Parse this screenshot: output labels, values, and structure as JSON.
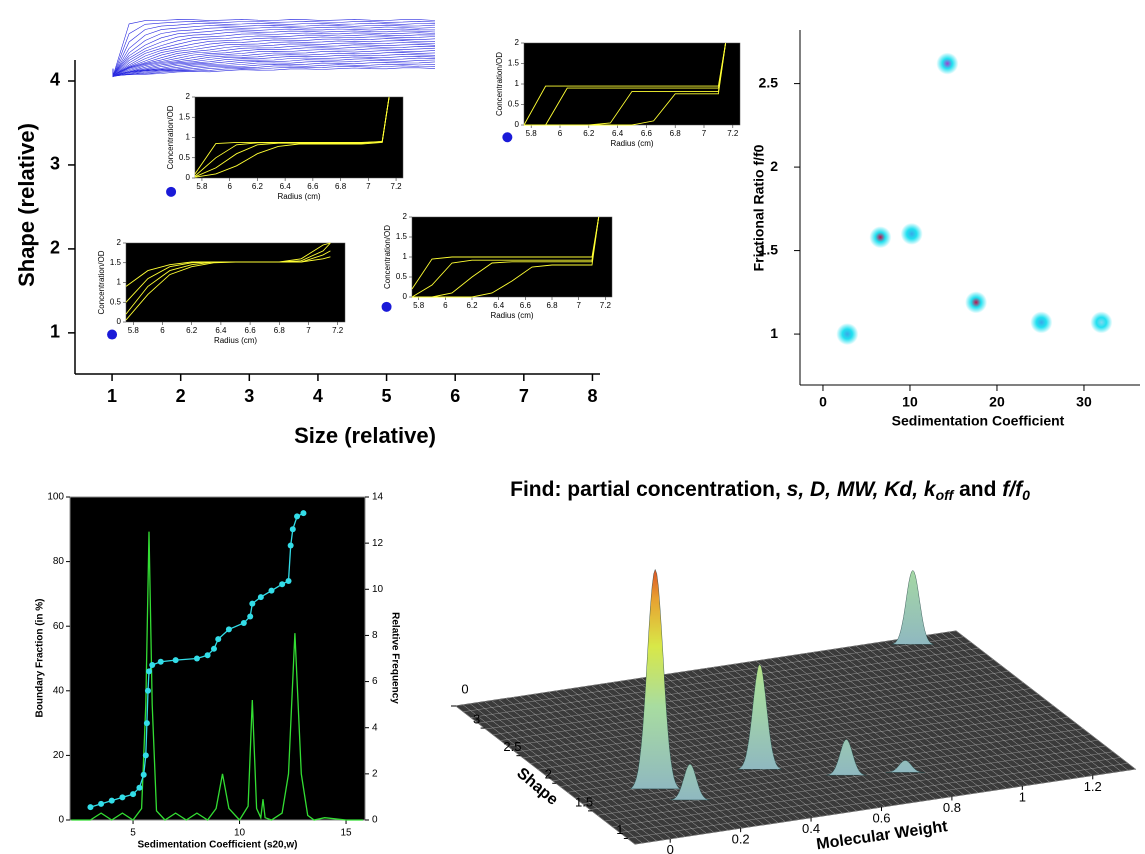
{
  "chart_data": [
    {
      "type": "scatter",
      "xlabel": "Size (relative)",
      "ylabel": "Shape (relative)",
      "xlim": [
        0.46,
        8.11
      ],
      "ylim": [
        0.51,
        4.25
      ],
      "xticks": [
        1,
        2,
        3,
        4,
        5,
        6,
        7,
        8
      ],
      "yticks": [
        1,
        2,
        3,
        4
      ],
      "x": [
        1,
        1.86,
        5,
        6.76
      ],
      "y": [
        0.98,
        2.68,
        1.31,
        3.33
      ],
      "color": "#1a1ad8",
      "insets": [
        {
          "type": "line",
          "xlabel": "Radius (cm)",
          "ylabel": "Concentration/OD",
          "xlim": [
            5.75,
            7.25
          ],
          "ylim": [
            0,
            2
          ],
          "xticks": [
            5.8,
            6,
            6.2,
            6.4,
            6.6,
            6.8,
            7,
            7.2
          ],
          "yticks": [
            0,
            0.5,
            1,
            1.5,
            2
          ],
          "color": "#ffff33",
          "x": [
            5.75,
            5.9,
            6.05,
            6.2,
            6.35,
            6.5,
            6.65,
            6.8,
            6.95,
            7.1,
            7.15
          ],
          "series": [
            {
              "values": [
                0.1,
                0.85,
                0.88,
                0.88,
                0.88,
                0.88,
                0.88,
                0.88,
                0.88,
                0.9,
                2
              ]
            },
            {
              "values": [
                0.05,
                0.5,
                0.82,
                0.87,
                0.87,
                0.87,
                0.87,
                0.87,
                0.87,
                0.9,
                2
              ]
            },
            {
              "values": [
                0.03,
                0.25,
                0.6,
                0.82,
                0.86,
                0.86,
                0.86,
                0.86,
                0.86,
                0.9,
                2
              ]
            },
            {
              "values": [
                0.02,
                0.1,
                0.3,
                0.6,
                0.78,
                0.84,
                0.84,
                0.84,
                0.84,
                0.88,
                2
              ]
            }
          ]
        },
        {
          "type": "line",
          "xlabel": "Radius (cm)",
          "ylabel": "Concentration/OD",
          "xlim": [
            5.75,
            7.25
          ],
          "ylim": [
            0,
            2
          ],
          "xticks": [
            5.8,
            6,
            6.2,
            6.4,
            6.6,
            6.8,
            7,
            7.2
          ],
          "yticks": [
            0,
            0.5,
            1,
            1.5,
            2
          ],
          "color": "#ffff33",
          "x": [
            5.75,
            5.9,
            6.05,
            6.2,
            6.35,
            6.5,
            6.65,
            6.8,
            6.95,
            7.1,
            7.15
          ],
          "series": [
            {
              "values": [
                0,
                0.95,
                0.95,
                0.95,
                0.95,
                0.95,
                0.95,
                0.95,
                0.95,
                0.95,
                2
              ]
            },
            {
              "values": [
                0,
                0,
                0.9,
                0.9,
                0.9,
                0.9,
                0.9,
                0.9,
                0.9,
                0.9,
                2
              ]
            },
            {
              "values": [
                0,
                0,
                0,
                0,
                0.05,
                0.82,
                0.82,
                0.82,
                0.82,
                0.82,
                2
              ]
            },
            {
              "values": [
                0,
                0,
                0,
                0,
                0,
                0,
                0.1,
                0.76,
                0.76,
                0.76,
                2
              ]
            }
          ]
        },
        {
          "type": "line",
          "xlabel": "Radius (cm)",
          "ylabel": "Concentration/OD",
          "xlim": [
            5.75,
            7.25
          ],
          "ylim": [
            0,
            2
          ],
          "xticks": [
            5.8,
            6,
            6.2,
            6.4,
            6.6,
            6.8,
            7,
            7.2
          ],
          "yticks": [
            0,
            0.5,
            1,
            1.5,
            2
          ],
          "color": "#ffff33",
          "x": [
            5.75,
            5.9,
            6.05,
            6.2,
            6.35,
            6.5,
            6.65,
            6.8,
            6.95,
            7.1,
            7.15
          ],
          "series": [
            {
              "values": [
                0.05,
                0.7,
                1.2,
                1.4,
                1.5,
                1.52,
                1.52,
                1.52,
                1.55,
                1.8,
                2
              ]
            },
            {
              "values": [
                0.2,
                0.9,
                1.3,
                1.45,
                1.52,
                1.52,
                1.52,
                1.52,
                1.6,
                1.95,
                2
              ]
            },
            {
              "values": [
                0.5,
                1.1,
                1.4,
                1.5,
                1.52,
                1.52,
                1.52,
                1.52,
                1.52,
                1.7,
                1.8
              ]
            },
            {
              "values": [
                0.9,
                1.3,
                1.45,
                1.52,
                1.52,
                1.52,
                1.52,
                1.52,
                1.52,
                1.6,
                1.65
              ]
            }
          ]
        },
        {
          "type": "line",
          "xlabel": "Radius (cm)",
          "ylabel": "Concentration/OD",
          "xlim": [
            5.75,
            7.25
          ],
          "ylim": [
            0,
            2
          ],
          "xticks": [
            5.8,
            6,
            6.2,
            6.4,
            6.6,
            6.8,
            7,
            7.2
          ],
          "yticks": [
            0,
            0.5,
            1,
            1.5,
            2
          ],
          "color": "#ffff33",
          "x": [
            5.75,
            5.9,
            6.05,
            6.2,
            6.35,
            6.5,
            6.65,
            6.8,
            6.95,
            7.1,
            7.15
          ],
          "series": [
            {
              "values": [
                0.2,
                0.95,
                1,
                1,
                1,
                1,
                1,
                1,
                1,
                1,
                2
              ]
            },
            {
              "values": [
                0,
                0.3,
                0.85,
                0.92,
                0.92,
                0.92,
                0.92,
                0.92,
                0.92,
                0.92,
                2
              ]
            },
            {
              "values": [
                0,
                0,
                0.1,
                0.5,
                0.85,
                0.88,
                0.88,
                0.88,
                0.88,
                0.88,
                2
              ]
            },
            {
              "values": [
                0,
                0,
                0,
                0,
                0.1,
                0.4,
                0.75,
                0.8,
                0.8,
                0.8,
                2
              ]
            }
          ]
        }
      ]
    },
    {
      "type": "scatter",
      "xlabel": "Sedimentation Coefficient",
      "ylabel": "Frictional Ratio f/f0",
      "xlim": [
        -2.64,
        36.44
      ],
      "ylim": [
        0.695,
        2.821
      ],
      "xticks": [
        0,
        10,
        20,
        30
      ],
      "yticks": [
        1,
        1.5,
        2,
        2.5
      ],
      "x": [
        2.8,
        6.6,
        10.2,
        14.3,
        17.6,
        25.1,
        32
      ],
      "y": [
        1.0,
        1.58,
        1.6,
        2.62,
        1.19,
        1.07,
        1.07
      ],
      "colors": [
        "#3aa8e8",
        "#c0104a",
        "#3aa8e8",
        "#a040d0",
        "#c0104a",
        "#3aa8e8",
        "#7fd8f0"
      ],
      "halo_color": "#20e0f0"
    },
    {
      "type": "line",
      "xlabel": "Sedimentation Coefficient (s20,w)",
      "ylabel": "Boundary Fraction (in %)",
      "y2label": "Relative Frequency",
      "xlim": [
        2.04,
        15.89
      ],
      "ylim": [
        0,
        100
      ],
      "y2lim": [
        0,
        14
      ],
      "xticks": [
        5,
        10,
        15
      ],
      "yticks": [
        0,
        20,
        40,
        60,
        80,
        100
      ],
      "y2ticks": [
        0,
        2,
        4,
        6,
        8,
        10,
        12,
        14
      ],
      "background": "#000000",
      "series": [
        {
          "color": "#33dde8",
          "marker": true,
          "x": [
            3.0,
            3.5,
            4.0,
            4.5,
            5.0,
            5.3,
            5.5,
            5.6,
            5.65,
            5.7,
            5.75,
            5.9,
            6.3,
            7.0,
            8.0,
            8.5,
            8.8,
            9.0,
            9.5,
            10.2,
            10.5,
            10.6,
            11.0,
            11.5,
            12.0,
            12.3,
            12.4,
            12.5,
            12.7,
            13.0
          ],
          "values": [
            4,
            5,
            6,
            7,
            8,
            10,
            14,
            20,
            30,
            40,
            46,
            48,
            49,
            49.5,
            50,
            51,
            53,
            56,
            59,
            61,
            63,
            67,
            69,
            71,
            73,
            74,
            85,
            90,
            94,
            95
          ]
        },
        {
          "color": "#33dd33",
          "axis": "y2",
          "x": [
            2.1,
            3,
            3.5,
            4,
            4.5,
            5,
            5.4,
            5.6,
            5.75,
            5.9,
            6.1,
            6.5,
            7,
            7.5,
            8,
            8.5,
            8.9,
            9.2,
            9.5,
            10,
            10.4,
            10.6,
            10.8,
            11,
            11.1,
            11.2,
            11.5,
            12,
            12.3,
            12.6,
            12.9,
            13.2,
            13.5,
            14,
            15,
            15.8
          ],
          "values": [
            0,
            0,
            0.3,
            0,
            0.3,
            0,
            0.5,
            5,
            12.5,
            5,
            0.4,
            0,
            0.3,
            0,
            0.3,
            0,
            0.5,
            2,
            0.5,
            0,
            0.6,
            5.2,
            0.5,
            0.1,
            0.9,
            0.1,
            0,
            0.3,
            2,
            8.1,
            2,
            0.2,
            0,
            0.1,
            0,
            0
          ]
        }
      ]
    },
    {
      "type": "surface",
      "xlabel": "Molecular Weight",
      "ylabel": "Shape",
      "xlim": [
        -0.1,
        1.32
      ],
      "ylim": [
        0.9,
        3.4
      ],
      "zlim": [
        0,
        1
      ],
      "xticks": [
        0,
        0.2,
        0.4,
        0.6,
        0.8,
        1,
        1.2
      ],
      "yticks": [
        1,
        1.5,
        2,
        2.5,
        3
      ],
      "zticks": [
        0
      ],
      "peaks": [
        {
          "mw": 0.114,
          "shape": 1.67,
          "height": 0.92
        },
        {
          "mw": 0.425,
          "shape": 1.74,
          "height": 0.44
        },
        {
          "mw": 1.175,
          "shape": 3.29,
          "height": 0.31
        },
        {
          "mw": 0.166,
          "shape": 1.44,
          "height": 0.15
        },
        {
          "mw": 0.614,
          "shape": 1.46,
          "height": 0.15
        },
        {
          "mw": 0.763,
          "shape": 1.37,
          "height": 0.05
        }
      ]
    }
  ],
  "headline": [
    "Find: partial concentration, ",
    "s, D, MW, Kd, k",
    "off",
    " and ",
    "f/f",
    "0"
  ]
}
